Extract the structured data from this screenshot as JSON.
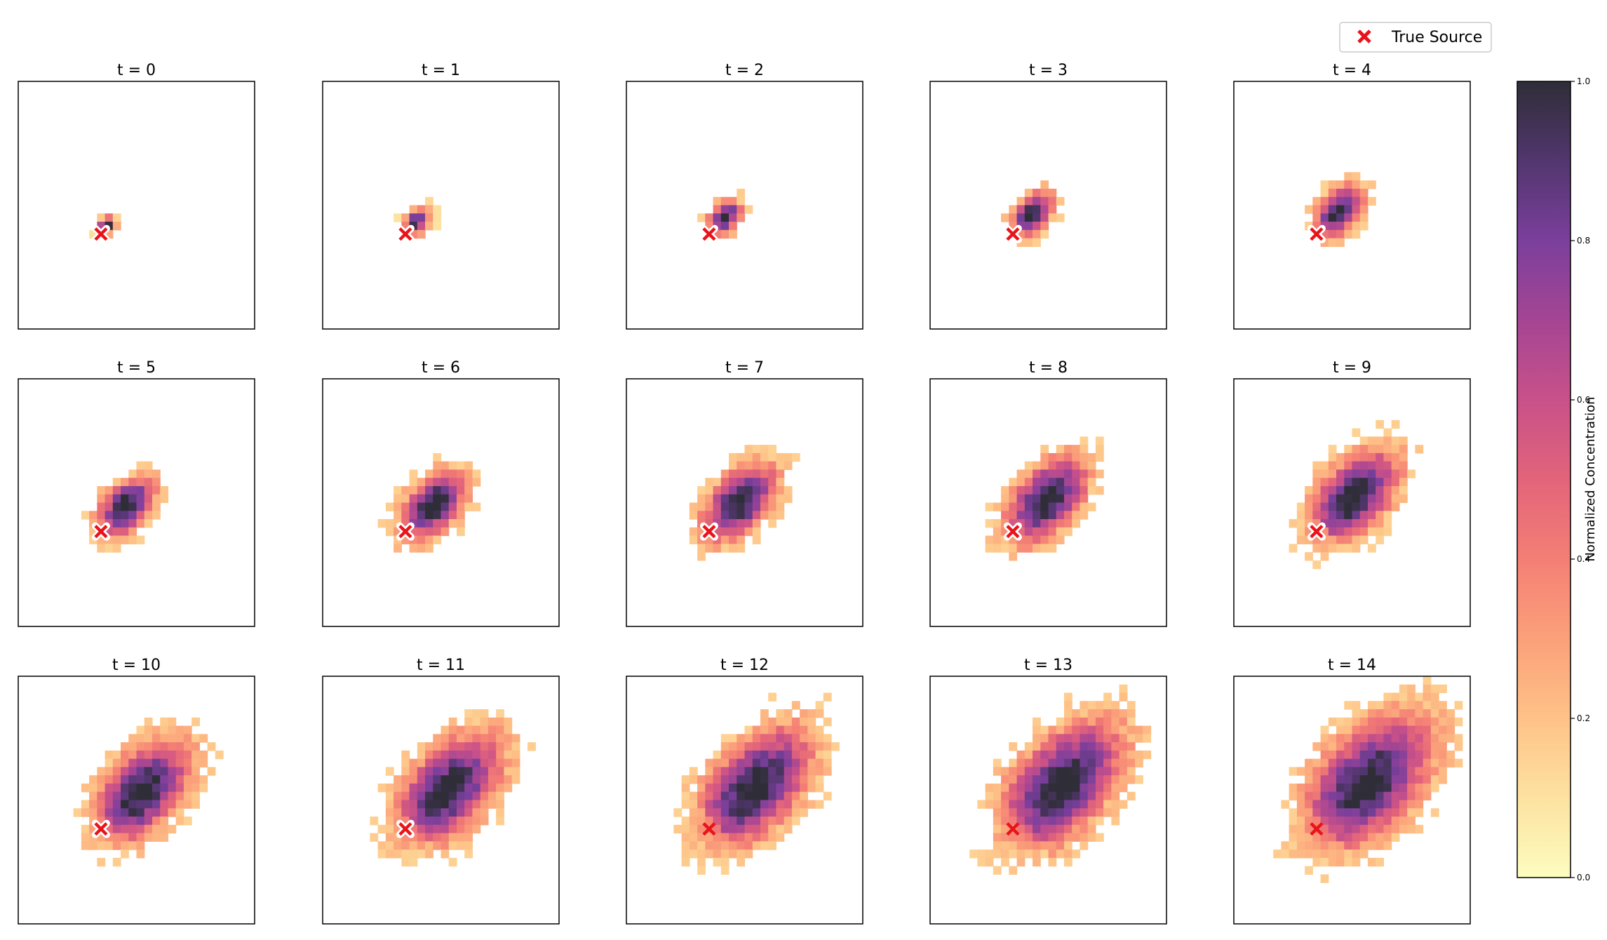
{
  "chart_data": {
    "type": "heatmap",
    "title": "",
    "grid": false,
    "panel_titles": [
      "t = 0",
      "t = 1",
      "t = 2",
      "t = 3",
      "t = 4",
      "t = 5",
      "t = 6",
      "t = 7",
      "t = 8",
      "t = 9",
      "t = 10",
      "t = 11",
      "t = 12",
      "t = 13",
      "t = 14"
    ],
    "time_steps": [
      0,
      1,
      2,
      3,
      4,
      5,
      6,
      7,
      8,
      9,
      10,
      11,
      12,
      13,
      14
    ],
    "grid_size": 30,
    "source_cell": [
      10,
      18
    ],
    "drift_per_step": [
      0.38,
      -0.3
    ],
    "colorscale": "magma_r",
    "colorbar": {
      "label": "Normalized Concentration",
      "range": [
        0.0,
        1.0
      ],
      "ticks": [
        "0.0",
        "0.2",
        "0.4",
        "0.6",
        "0.8",
        "1.0"
      ]
    },
    "legend": {
      "placement": "top-right",
      "entries": [
        {
          "label": "True Source",
          "marker": "x",
          "color": "#e8141a"
        }
      ]
    }
  }
}
